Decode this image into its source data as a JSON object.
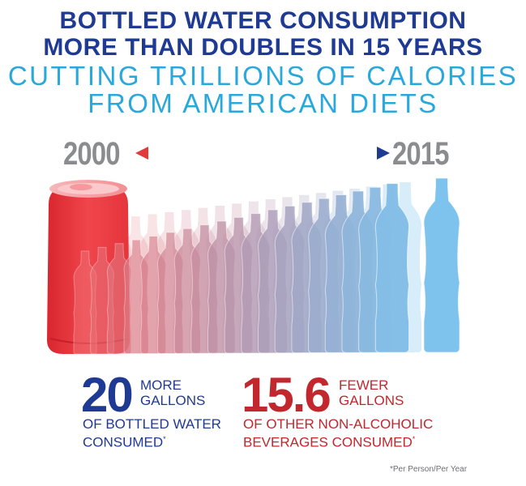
{
  "title": {
    "line1": "BOTTLED WATER CONSUMPTION",
    "line2": "MORE THAN DOUBLES IN 15 YEARS",
    "line3": "CUTTING TRILLIONS OF CALORIES",
    "line4": "FROM AMERICAN DIETS"
  },
  "timeline": {
    "start_year": "2000",
    "end_year": "2015"
  },
  "stats": {
    "water": {
      "number": "20",
      "line1": "MORE",
      "line2": "GALLONS",
      "line3": "OF BOTTLED WATER",
      "line4": "CONSUMED",
      "mark": "*"
    },
    "other": {
      "number": "15.6",
      "line1": "FEWER",
      "line2": "GALLONS",
      "line3": "OF OTHER NON-ALCOHOLIC",
      "line4": "BEVERAGES CONSUMED",
      "mark": "*"
    }
  },
  "footnote": "*Per Person/Per Year",
  "colors": {
    "title_blue": "#1f3a93",
    "subtitle_cyan": "#29a8dc",
    "soda_red": "#e8313a",
    "water_blue": "#7ec3ee",
    "stat_red": "#c1272d"
  },
  "icons": [
    "soda-can-icon",
    "water-bottle-icon",
    "double-arrow-icon"
  ]
}
